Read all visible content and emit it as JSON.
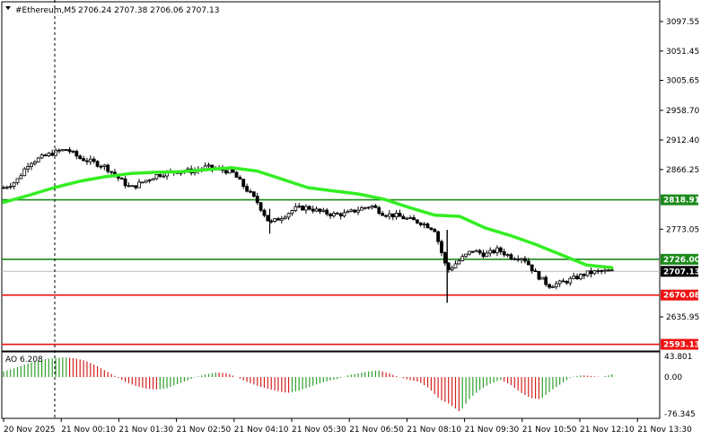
{
  "header": {
    "symbol": "#Ethereum,M5",
    "ohlc": "2706.24 2707.38 2706.06 2707.13",
    "menu_arrow": "triangle-down-icon"
  },
  "colors": {
    "background": "#ffffff",
    "candle": "#000000",
    "ma": "#33ee22",
    "green_level": "#1a8a1a",
    "red_level": "#ee1111",
    "price_tag": "#000000",
    "ao_up": "#2e9e2e",
    "ao_down": "#d42020"
  },
  "price_axis": {
    "ticks": [
      "3097.55",
      "3051.45",
      "3005.65",
      "2958.70",
      "2912.40",
      "2866.25",
      "2773.05",
      "2635.95"
    ],
    "current_price": "2707.13"
  },
  "levels": [
    {
      "price": "2818.91",
      "color": "green"
    },
    {
      "price": "2726.00",
      "color": "green"
    },
    {
      "price": "2670.08",
      "color": "red"
    },
    {
      "price": "2593.13",
      "color": "red"
    }
  ],
  "ao": {
    "label": "AO 6.208",
    "ticks": [
      "43.801",
      "0.00",
      "-76.345"
    ]
  },
  "time_axis": [
    "20 Nov 2025",
    "21 Nov 00:10",
    "21 Nov 01:30",
    "21 Nov 02:50",
    "21 Nov 04:10",
    "21 Nov 05:30",
    "21 Nov 06:50",
    "21 Nov 08:10",
    "21 Nov 09:30",
    "21 Nov 10:50",
    "21 Nov 12:10",
    "21 Nov 13:30"
  ],
  "chart_data": {
    "type": "candlestick",
    "symbol": "#Ethereum",
    "timeframe": "M5",
    "ma_y": [
      [
        0,
        2815
      ],
      [
        0.04,
        2826
      ],
      [
        0.08,
        2838
      ],
      [
        0.12,
        2848
      ],
      [
        0.16,
        2855
      ],
      [
        0.2,
        2860
      ],
      [
        0.24,
        2862
      ],
      [
        0.28,
        2863
      ],
      [
        0.32,
        2866
      ],
      [
        0.36,
        2869
      ],
      [
        0.4,
        2864
      ],
      [
        0.44,
        2851
      ],
      [
        0.48,
        2838
      ],
      [
        0.52,
        2833
      ],
      [
        0.56,
        2828
      ],
      [
        0.6,
        2820
      ],
      [
        0.64,
        2807
      ],
      [
        0.68,
        2795
      ],
      [
        0.72,
        2793
      ],
      [
        0.76,
        2775
      ],
      [
        0.8,
        2763
      ],
      [
        0.84,
        2749
      ],
      [
        0.88,
        2733
      ],
      [
        0.92,
        2717
      ],
      [
        0.96,
        2713
      ]
    ],
    "close_path": [
      [
        0,
        2838
      ],
      [
        0.02,
        2848
      ],
      [
        0.04,
        2877
      ],
      [
        0.06,
        2885
      ],
      [
        0.08,
        2893
      ],
      [
        0.1,
        2898
      ],
      [
        0.12,
        2884
      ],
      [
        0.14,
        2878
      ],
      [
        0.16,
        2871
      ],
      [
        0.18,
        2854
      ],
      [
        0.2,
        2837
      ],
      [
        0.22,
        2847
      ],
      [
        0.24,
        2857
      ],
      [
        0.26,
        2862
      ],
      [
        0.28,
        2864
      ],
      [
        0.3,
        2864
      ],
      [
        0.32,
        2870
      ],
      [
        0.34,
        2866
      ],
      [
        0.36,
        2863
      ],
      [
        0.38,
        2839
      ],
      [
        0.4,
        2816
      ],
      [
        0.42,
        2782
      ],
      [
        0.44,
        2793
      ],
      [
        0.46,
        2805
      ],
      [
        0.48,
        2807
      ],
      [
        0.5,
        2800
      ],
      [
        0.52,
        2796
      ],
      [
        0.54,
        2797
      ],
      [
        0.56,
        2804
      ],
      [
        0.58,
        2810
      ],
      [
        0.6,
        2797
      ],
      [
        0.62,
        2794
      ],
      [
        0.64,
        2788
      ],
      [
        0.66,
        2783
      ],
      [
        0.68,
        2773
      ],
      [
        0.7,
        2708
      ],
      [
        0.72,
        2725
      ],
      [
        0.74,
        2740
      ],
      [
        0.76,
        2733
      ],
      [
        0.78,
        2741
      ],
      [
        0.8,
        2730
      ],
      [
        0.82,
        2729
      ],
      [
        0.84,
        2703
      ],
      [
        0.86,
        2685
      ],
      [
        0.88,
        2689
      ],
      [
        0.9,
        2696
      ],
      [
        0.92,
        2704
      ],
      [
        0.94,
        2707
      ],
      [
        0.96,
        2707
      ]
    ],
    "ao_values": [
      12,
      18,
      26,
      33,
      38,
      40,
      42,
      40,
      35,
      26,
      14,
      2,
      -10,
      -18,
      -24,
      -26,
      -24,
      -16,
      -8,
      0,
      6,
      10,
      8,
      0,
      -10,
      -18,
      -24,
      -29,
      -33,
      -29,
      -22,
      -14,
      -8,
      -4,
      4,
      8,
      12,
      14,
      8,
      0,
      -6,
      -10,
      -24,
      -46,
      -56,
      -72,
      -44,
      -26,
      -14,
      -6,
      -16,
      -32,
      -44,
      -46,
      -28,
      -14,
      0,
      4,
      2,
      0,
      6
    ]
  }
}
